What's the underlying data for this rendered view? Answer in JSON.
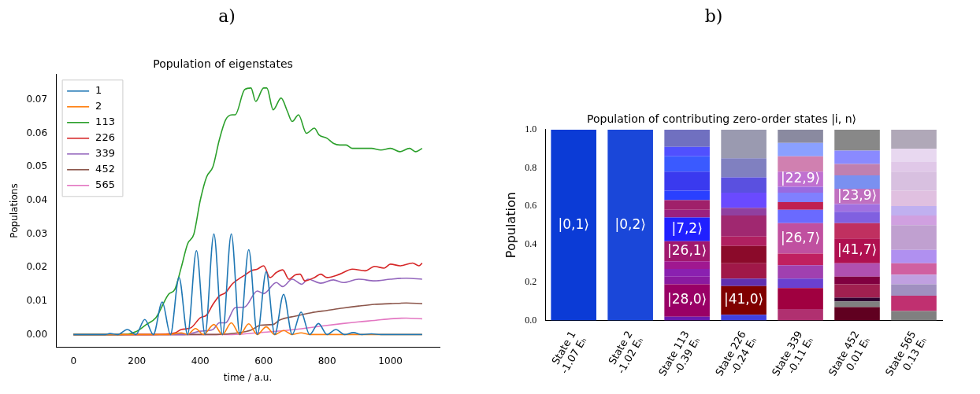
{
  "chart_data": [
    {
      "type": "line",
      "annotations": [
        "a)"
      ],
      "title": "Population of eigenstates",
      "xlabel": "time / a.u.",
      "ylabel": "Populations",
      "xlim": [
        -55,
        1155
      ],
      "ylim": [
        -0.0037,
        0.0775
      ],
      "xticks": [
        0,
        200,
        400,
        600,
        800,
        1000
      ],
      "yticks": [
        {
          "value": 0,
          "label": "0.00"
        },
        {
          "value": 0.01,
          "label": "0.01"
        },
        {
          "value": 0.02,
          "label": "0.02"
        },
        {
          "value": 0.03,
          "label": "0.03"
        },
        {
          "value": 0.04,
          "label": "0.04"
        },
        {
          "value": 0.05,
          "label": "0.05"
        },
        {
          "value": 0.06,
          "label": "0.06"
        },
        {
          "value": 0.07,
          "label": "0.07"
        }
      ],
      "grid": false,
      "legend": "top left",
      "marker": "none",
      "line_style": "solid",
      "series": [
        {
          "name": "1",
          "color": "#1f77b4",
          "x": [
            0,
            100,
            115,
            140,
            170,
            197,
            225,
            252,
            280,
            306,
            333,
            360,
            388,
            415,
            443,
            470,
            498,
            525,
            553,
            580,
            608,
            635,
            663,
            690,
            718,
            745,
            773,
            800,
            828,
            855,
            883,
            910,
            940,
            970,
            1100
          ],
          "values": [
            0,
            0,
            0.0003,
            0,
            0.0015,
            0,
            0.0045,
            0,
            0.0097,
            0,
            0.017,
            0,
            0.025,
            0,
            0.03,
            0,
            0.03,
            0,
            0.0253,
            0,
            0.0187,
            0,
            0.012,
            0,
            0.0067,
            0,
            0.0033,
            0,
            0.0015,
            0,
            0.0006,
            0,
            0.0002,
            0,
            0
          ]
        },
        {
          "name": "2",
          "color": "#ff7f0e",
          "x": [
            0,
            300,
            340,
            360,
            385,
            410,
            443,
            470,
            498,
            525,
            553,
            580,
            608,
            635,
            663,
            690,
            718,
            745,
            1100
          ],
          "values": [
            0,
            0,
            0.0005,
            0,
            0.0018,
            0,
            0.003,
            0,
            0.0035,
            0,
            0.0032,
            0,
            0.0023,
            0,
            0.0012,
            0,
            0.0005,
            0,
            0
          ]
        },
        {
          "name": "113",
          "color": "#2ca02c",
          "x": [
            0,
            150,
            200,
            230,
            260,
            300,
            320,
            340,
            360,
            380,
            400,
            420,
            440,
            460,
            480,
            500,
            510,
            540,
            560,
            575,
            600,
            610,
            630,
            655,
            675,
            690,
            710,
            735,
            760,
            775,
            800,
            820,
            840,
            860,
            880,
            900,
            940,
            970,
            1000,
            1030,
            1060,
            1080,
            1100
          ],
          "values": [
            0,
            0,
            0.001,
            0.003,
            0.005,
            0.012,
            0.0135,
            0.02,
            0.027,
            0.03,
            0.04,
            0.047,
            0.05,
            0.058,
            0.064,
            0.0655,
            0.0655,
            0.073,
            0.0735,
            0.0695,
            0.0735,
            0.0735,
            0.067,
            0.0705,
            0.0665,
            0.0635,
            0.0655,
            0.06,
            0.0615,
            0.0595,
            0.0585,
            0.057,
            0.0565,
            0.0565,
            0.0555,
            0.0555,
            0.0555,
            0.055,
            0.0555,
            0.0545,
            0.0555,
            0.0545,
            0.0555
          ]
        },
        {
          "name": "226",
          "color": "#d62728",
          "x": [
            0,
            250,
            320,
            340,
            370,
            400,
            420,
            440,
            460,
            480,
            500,
            520,
            545,
            560,
            580,
            600,
            620,
            640,
            660,
            680,
            700,
            715,
            730,
            760,
            780,
            800,
            840,
            880,
            920,
            950,
            980,
            1000,
            1030,
            1070,
            1090,
            1100
          ],
          "values": [
            0,
            0,
            0.0005,
            0.0015,
            0.002,
            0.005,
            0.0058,
            0.009,
            0.0115,
            0.0125,
            0.015,
            0.0165,
            0.018,
            0.019,
            0.0195,
            0.0205,
            0.017,
            0.0185,
            0.0193,
            0.0165,
            0.0178,
            0.018,
            0.016,
            0.017,
            0.018,
            0.017,
            0.018,
            0.0195,
            0.019,
            0.0203,
            0.0198,
            0.021,
            0.0205,
            0.0213,
            0.0205,
            0.0213
          ]
        },
        {
          "name": "339",
          "color": "#9467bd",
          "x": [
            0,
            350,
            400,
            440,
            460,
            480,
            510,
            540,
            580,
            600,
            640,
            660,
            690,
            720,
            740,
            780,
            820,
            850,
            900,
            950,
            1000,
            1050,
            1100
          ],
          "values": [
            0,
            0,
            0.001,
            0.0015,
            0.0035,
            0.0035,
            0.008,
            0.0082,
            0.013,
            0.0122,
            0.0155,
            0.0143,
            0.0165,
            0.015,
            0.0165,
            0.0153,
            0.0163,
            0.0155,
            0.0165,
            0.016,
            0.0165,
            0.0168,
            0.0165
          ]
        },
        {
          "name": "452",
          "color": "#8c564b",
          "x": [
            0,
            450,
            520,
            560,
            590,
            630,
            650,
            700,
            750,
            800,
            850,
            900,
            950,
            1000,
            1050,
            1100
          ],
          "values": [
            0,
            0,
            0.0005,
            0.0013,
            0.0028,
            0.003,
            0.0043,
            0.0055,
            0.0065,
            0.0072,
            0.0079,
            0.0085,
            0.009,
            0.0092,
            0.0094,
            0.0092
          ]
        },
        {
          "name": "565",
          "color": "#e377c2",
          "x": [
            0,
            500,
            600,
            700,
            780,
            850,
            900,
            950,
            1000,
            1050,
            1100
          ],
          "values": [
            0,
            0,
            0.0007,
            0.0015,
            0.0025,
            0.0033,
            0.0038,
            0.0042,
            0.0047,
            0.0049,
            0.0047
          ]
        }
      ]
    },
    {
      "type": "bar",
      "stacked": true,
      "annotations": [
        "b)"
      ],
      "title": "Population of contributing zero-order states |i, n⟩",
      "ylabel": "Population",
      "ylim": [
        0,
        1
      ],
      "yticks": [
        {
          "value": 0,
          "label": "0.0"
        },
        {
          "value": 0.2,
          "label": "0.2"
        },
        {
          "value": 0.4,
          "label": "0.4"
        },
        {
          "value": 0.6,
          "label": "0.6"
        },
        {
          "value": 0.8,
          "label": "0.8"
        },
        {
          "value": 1,
          "label": "1.0"
        }
      ],
      "grid": false,
      "legend": false,
      "categories": [
        "State 1\n-1.07 Eₕ",
        "State 2\n-1.02 Eₕ",
        "State 113\n-0.39 Eₕ",
        "State 226\n-0.24 Eₕ",
        "State 339\n-0.11 Eₕ",
        "State 452\n0.01 Eₕ",
        "State 565\n0.13 Eₕ"
      ],
      "series": [
        {
          "name": "|0,1⟩",
          "color": "#0b3bd6",
          "values": [
            1,
            null,
            null,
            null,
            null,
            null,
            null
          ]
        },
        {
          "name": "|0,2⟩",
          "color": "#1a47d9",
          "values": [
            null,
            1,
            null,
            null,
            null,
            null,
            null
          ]
        },
        {
          "values": [
            null,
            null,
            0.02,
            0.03,
            0.06,
            0.07,
            0.05
          ],
          "colors": [
            null,
            null,
            "#6a1ab0",
            "#4040e0",
            "#b03070",
            "#600020",
            "#808080"
          ]
        },
        {
          "name": "|28,0⟩",
          "color": "#990066",
          "values": [
            null,
            null,
            0.17,
            null,
            null,
            null,
            null
          ]
        },
        {
          "name": "|41,0⟩",
          "color": "#800000",
          "values": [
            null,
            null,
            null,
            0.15,
            null,
            null,
            null
          ]
        },
        {
          "values": [
            null,
            null,
            null,
            null,
            0.11,
            0.03,
            0.08
          ],
          "colors": [
            null,
            null,
            null,
            null,
            "#a00040",
            "#808080",
            "#c03070"
          ]
        },
        {
          "values": [
            null,
            null,
            0.04,
            0.04,
            0.05,
            0.02,
            0.06
          ],
          "colors": [
            null,
            null,
            "#8a1aa0",
            "#6030b0",
            "#6a40d0",
            "#300030",
            "#a090c0"
          ]
        },
        {
          "values": [
            null,
            null,
            0.04,
            0.08,
            0.07,
            0.07,
            0.05
          ],
          "colors": [
            null,
            null,
            "#8a20b0",
            "#a01848",
            "#a040b0",
            "#a02050",
            "#c0a0e0"
          ]
        },
        {
          "values": [
            null,
            null,
            0.04,
            0.09,
            0.06,
            0.04,
            0.06
          ],
          "colors": [
            null,
            null,
            "#a01890",
            "#8b0a2a",
            "#c02060",
            "#800040",
            "#d060a0"
          ]
        },
        {
          "name": "|26,1⟩",
          "color": "#a0186e",
          "values": [
            null,
            null,
            0.105,
            null,
            null,
            null,
            null
          ]
        },
        {
          "name": "|26,7⟩",
          "color": "#c050a0",
          "values": [
            null,
            null,
            null,
            null,
            0.16,
            null,
            null
          ]
        },
        {
          "values": [
            null,
            null,
            null,
            0.05,
            null,
            0.07,
            0.07
          ],
          "colors": [
            null,
            null,
            null,
            "#b02060",
            null,
            "#b050b0",
            "#b090f0"
          ]
        },
        {
          "name": "|7,2⟩",
          "color": "#2020ff",
          "values": [
            null,
            null,
            0.125,
            null,
            null,
            null,
            null
          ]
        },
        {
          "name": "|41,7⟩",
          "color": "#b01050",
          "values": [
            null,
            null,
            null,
            null,
            null,
            0.13,
            null
          ]
        },
        {
          "values": [
            null,
            null,
            null,
            0.11,
            0.07,
            null,
            0.13
          ],
          "colors": [
            null,
            null,
            null,
            "#a02870",
            "#6a6aff",
            null,
            "#c0a0d0"
          ]
        },
        {
          "values": [
            null,
            null,
            0.04,
            0.04,
            0.04,
            0.08,
            0.05
          ],
          "colors": [
            null,
            null,
            "#9a2080",
            "#9040a0",
            "#c02050",
            "#c03060",
            "#d0a0e0"
          ]
        },
        {
          "values": [
            null,
            null,
            0.05,
            0.08,
            0.05,
            0.06,
            0.05
          ],
          "colors": [
            null,
            null,
            "#a0206a",
            "#6a4aff",
            "#8080ff",
            "#8060e0",
            "#c0b0f0"
          ]
        },
        {
          "values": [
            null,
            null,
            0.05,
            0.08,
            0.03,
            0.04,
            0.08
          ],
          "colors": [
            null,
            null,
            "#2a40ff",
            "#5a50e0",
            "#9a6ae0",
            "#a070e0",
            "#e0c0e0"
          ]
        },
        {
          "name": "|22,9⟩",
          "color": "#c070d0",
          "values": [
            null,
            null,
            null,
            null,
            0.08,
            null,
            null
          ]
        },
        {
          "name": "|23,9⟩",
          "color": "#c070c0",
          "values": [
            null,
            null,
            null,
            null,
            null,
            0.08,
            null
          ]
        },
        {
          "values": [
            null,
            null,
            0.1,
            0.1,
            null,
            null,
            0.1
          ],
          "colors": [
            null,
            null,
            "#3a3aef",
            "#8080c0",
            null,
            null,
            "#d8c0e0"
          ]
        },
        {
          "values": [
            null,
            null,
            0.08,
            0.15,
            0.08,
            0.07,
            0.05
          ],
          "colors": [
            null,
            null,
            "#3a5aff",
            "#9a9ab0",
            "#d080b0",
            "#7a90f0",
            "#e0c8e8"
          ]
        },
        {
          "values": [
            null,
            null,
            0.05,
            null,
            0.07,
            0.06,
            0.07
          ],
          "colors": [
            null,
            null,
            "#5050ff",
            null,
            "#8aa0ff",
            "#c080b0",
            "#e8d8f0"
          ]
        },
        {
          "values": [
            null,
            null,
            0.09,
            null,
            0.07,
            0.07,
            0.1
          ],
          "colors": [
            null,
            null,
            "#7070c0",
            null,
            "#8a8aa0",
            "#8a8aff",
            "#b0a8b8"
          ]
        },
        {
          "values": [
            null,
            null,
            null,
            null,
            null,
            0.11,
            null
          ],
          "colors": [
            null,
            null,
            null,
            null,
            null,
            "#888888",
            null
          ]
        }
      ]
    }
  ]
}
